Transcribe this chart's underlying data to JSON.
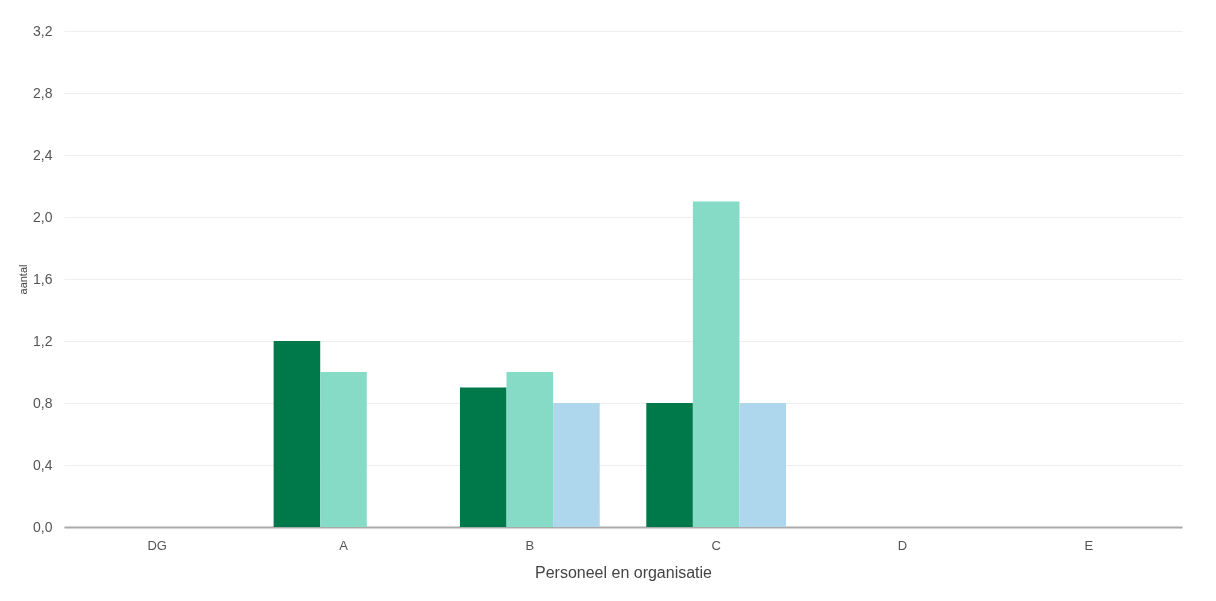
{
  "chart_data": {
    "type": "bar",
    "xlabel": "Personeel en organisatie",
    "ylabel": "aantal",
    "categories": [
      "DG",
      "A",
      "B",
      "C",
      "D",
      "E"
    ],
    "series": [
      {
        "color": "#00794a",
        "values": [
          null,
          1.2,
          0.9,
          0.8,
          null,
          null
        ]
      },
      {
        "color": "#86dbc6",
        "values": [
          null,
          1.0,
          1.0,
          2.1,
          null,
          null
        ]
      },
      {
        "color": "#aed6ec",
        "values": [
          null,
          null,
          0.8,
          0.8,
          null,
          null
        ]
      }
    ],
    "ylim": [
      0,
      3.2
    ],
    "yticks": [
      {
        "value": 0,
        "label": "0,0"
      },
      {
        "value": 0.4,
        "label": "0,4"
      },
      {
        "value": 0.8,
        "label": "0,8"
      },
      {
        "value": 1.2,
        "label": "1,2"
      },
      {
        "value": 1.6,
        "label": "1,6"
      },
      {
        "value": 2.0,
        "label": "2,0"
      },
      {
        "value": 2.4,
        "label": "2,4"
      },
      {
        "value": 2.8,
        "label": "2,8"
      },
      {
        "value": 3.2,
        "label": "3,2"
      }
    ],
    "grid": "y",
    "legend": false
  }
}
